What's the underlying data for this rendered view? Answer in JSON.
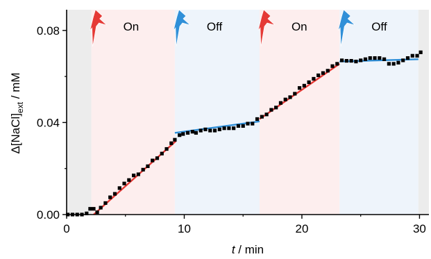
{
  "chart_data": {
    "type": "scatter",
    "title": "",
    "xlabel": {
      "italic": "t",
      "rest": " / min"
    },
    "ylabel": {
      "prefix": "Δ[NaCl]",
      "sub": "ext",
      "suffix": " / mM"
    },
    "xlim": [
      0,
      30.8
    ],
    "ylim": [
      0,
      0.089
    ],
    "xticks": [
      0,
      10,
      20,
      30
    ],
    "xtick_labels": [
      "0",
      "10",
      "20",
      "30"
    ],
    "yticks": [
      0.0,
      0.04,
      0.08
    ],
    "ytick_labels": [
      "0.00",
      "0.04",
      "0.08"
    ],
    "phases": [
      {
        "label": "",
        "start": 0,
        "end": 2.1,
        "kind": "none"
      },
      {
        "label": "On",
        "start": 2.1,
        "end": 9.2,
        "kind": "on"
      },
      {
        "label": "Off",
        "start": 9.2,
        "end": 16.4,
        "kind": "off"
      },
      {
        "label": "On",
        "start": 16.4,
        "end": 23.2,
        "kind": "on"
      },
      {
        "label": "Off",
        "start": 23.2,
        "end": 29.9,
        "kind": "off"
      },
      {
        "label": "",
        "start": 29.9,
        "end": 30.8,
        "kind": "none"
      }
    ],
    "series": [
      {
        "kind": "points",
        "points": [
          [
            0.1,
            0.0
          ],
          [
            0.5,
            0.0
          ],
          [
            0.9,
            0.0
          ],
          [
            1.3,
            0.0
          ],
          [
            1.7,
            0.0005
          ],
          [
            2.0,
            0.0025
          ],
          [
            2.3,
            0.0025
          ],
          [
            2.6,
            0.001
          ],
          [
            2.9,
            0.003
          ],
          [
            3.3,
            0.005
          ],
          [
            3.7,
            0.0075
          ],
          [
            4.1,
            0.009
          ],
          [
            4.5,
            0.0115
          ],
          [
            4.9,
            0.0135
          ],
          [
            5.3,
            0.015
          ],
          [
            5.7,
            0.017
          ],
          [
            6.1,
            0.0175
          ],
          [
            6.5,
            0.0195
          ],
          [
            6.9,
            0.021
          ],
          [
            7.3,
            0.0235
          ],
          [
            7.7,
            0.0245
          ],
          [
            8.1,
            0.0265
          ],
          [
            8.5,
            0.0285
          ],
          [
            8.9,
            0.031
          ],
          [
            9.2,
            0.0325
          ],
          [
            9.6,
            0.0345
          ],
          [
            9.9,
            0.035
          ],
          [
            10.3,
            0.0355
          ],
          [
            10.7,
            0.036
          ],
          [
            11.0,
            0.0355
          ],
          [
            11.4,
            0.0365
          ],
          [
            11.8,
            0.037
          ],
          [
            12.2,
            0.0365
          ],
          [
            12.6,
            0.0365
          ],
          [
            13.0,
            0.037
          ],
          [
            13.4,
            0.0375
          ],
          [
            13.8,
            0.0375
          ],
          [
            14.2,
            0.0375
          ],
          [
            14.6,
            0.0385
          ],
          [
            15.0,
            0.0385
          ],
          [
            15.4,
            0.0395
          ],
          [
            15.8,
            0.0395
          ],
          [
            16.2,
            0.0415
          ],
          [
            16.6,
            0.0425
          ],
          [
            17.0,
            0.0435
          ],
          [
            17.4,
            0.0455
          ],
          [
            17.8,
            0.0465
          ],
          [
            18.2,
            0.0485
          ],
          [
            18.6,
            0.05
          ],
          [
            19.0,
            0.051
          ],
          [
            19.4,
            0.0525
          ],
          [
            19.8,
            0.055
          ],
          [
            20.2,
            0.056
          ],
          [
            20.6,
            0.0575
          ],
          [
            21.0,
            0.059
          ],
          [
            21.4,
            0.0605
          ],
          [
            21.8,
            0.0615
          ],
          [
            22.2,
            0.0625
          ],
          [
            22.6,
            0.0645
          ],
          [
            23.0,
            0.0655
          ],
          [
            23.4,
            0.067
          ],
          [
            23.8,
            0.0668
          ],
          [
            24.2,
            0.0668
          ],
          [
            24.6,
            0.0665
          ],
          [
            25.0,
            0.067
          ],
          [
            25.4,
            0.0675
          ],
          [
            25.8,
            0.068
          ],
          [
            26.2,
            0.068
          ],
          [
            26.6,
            0.068
          ],
          [
            27.0,
            0.0675
          ],
          [
            27.4,
            0.0655
          ],
          [
            27.8,
            0.0655
          ],
          [
            28.2,
            0.066
          ],
          [
            28.6,
            0.067
          ],
          [
            29.0,
            0.068
          ],
          [
            29.4,
            0.069
          ],
          [
            29.8,
            0.069
          ],
          [
            30.1,
            0.0705
          ]
        ]
      },
      {
        "kind": "fit",
        "phase": "on",
        "x": [
          2.3,
          9.3
        ],
        "y": [
          0.0,
          0.032
        ]
      },
      {
        "kind": "fit",
        "phase": "off",
        "x": [
          9.2,
          16.4
        ],
        "y": [
          0.0355,
          0.0405
        ]
      },
      {
        "kind": "fit",
        "phase": "on",
        "x": [
          16.4,
          23.2
        ],
        "y": [
          0.0415,
          0.0655
        ]
      },
      {
        "kind": "fit",
        "phase": "off",
        "x": [
          23.2,
          29.9
        ],
        "y": [
          0.0665,
          0.0675
        ]
      }
    ],
    "colors": {
      "on_band": "#fdeeee",
      "off_band": "#eef4fb",
      "none_band": "#ececec",
      "on_fit": "#e53935",
      "off_fit": "#2f8fd8",
      "on_icon": "#e53935",
      "off_icon": "#2f8fd8",
      "points": "#000000"
    },
    "icons": {
      "on": "lightning-icon",
      "off": "lightning-icon"
    }
  }
}
